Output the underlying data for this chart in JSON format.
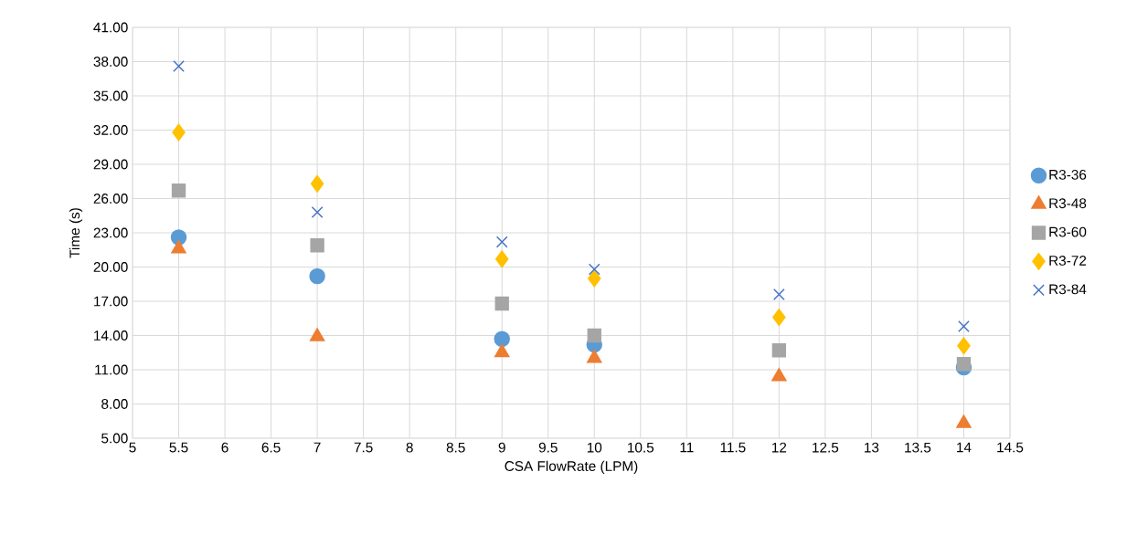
{
  "chart_data": {
    "type": "scatter",
    "xlabel": "CSA FlowRate (LPM)",
    "ylabel": "Time (s)",
    "x": [
      5.5,
      7,
      9,
      10,
      12,
      14
    ],
    "series": [
      {
        "name": "R3-36",
        "color": "#5b9bd5",
        "marker": "circle",
        "values": [
          22.6,
          19.2,
          13.7,
          13.2,
          null,
          11.2
        ]
      },
      {
        "name": "R3-48",
        "color": "#ed7d31",
        "marker": "triangle",
        "values": [
          21.6,
          13.9,
          12.5,
          12.0,
          10.4,
          6.3
        ]
      },
      {
        "name": "R3-60",
        "color": "#a5a5a5",
        "marker": "square",
        "values": [
          26.7,
          21.9,
          16.8,
          14.0,
          12.7,
          11.5
        ]
      },
      {
        "name": "R3-72",
        "color": "#ffc000",
        "marker": "diamond",
        "values": [
          31.8,
          27.3,
          20.7,
          19.0,
          15.6,
          13.1
        ]
      },
      {
        "name": "R3-84",
        "color": "#4472c4",
        "marker": "cross",
        "values": [
          37.6,
          24.8,
          22.2,
          19.8,
          17.6,
          14.8
        ]
      }
    ],
    "xlim": [
      5,
      14.5
    ],
    "xticks": [
      5,
      5.5,
      6,
      6.5,
      7,
      7.5,
      8,
      8.5,
      9,
      9.5,
      10,
      10.5,
      11,
      11.5,
      12,
      12.5,
      13,
      13.5,
      14,
      14.5
    ],
    "ylim": [
      5,
      41
    ],
    "yticks": [
      {
        "value": 5,
        "label": "5.00"
      },
      {
        "value": 8,
        "label": "8.00"
      },
      {
        "value": 11,
        "label": "11.00"
      },
      {
        "value": 14,
        "label": "14.00"
      },
      {
        "value": 17,
        "label": "17.00"
      },
      {
        "value": 20,
        "label": "20.00"
      },
      {
        "value": 23,
        "label": "23.00"
      },
      {
        "value": 26,
        "label": "26.00"
      },
      {
        "value": 29,
        "label": "29.00"
      },
      {
        "value": 32,
        "label": "32.00"
      },
      {
        "value": 35,
        "label": "35.00"
      },
      {
        "value": 38,
        "label": "38.00"
      },
      {
        "value": 41,
        "label": "41.00"
      }
    ],
    "grid": true,
    "legend": "right"
  }
}
